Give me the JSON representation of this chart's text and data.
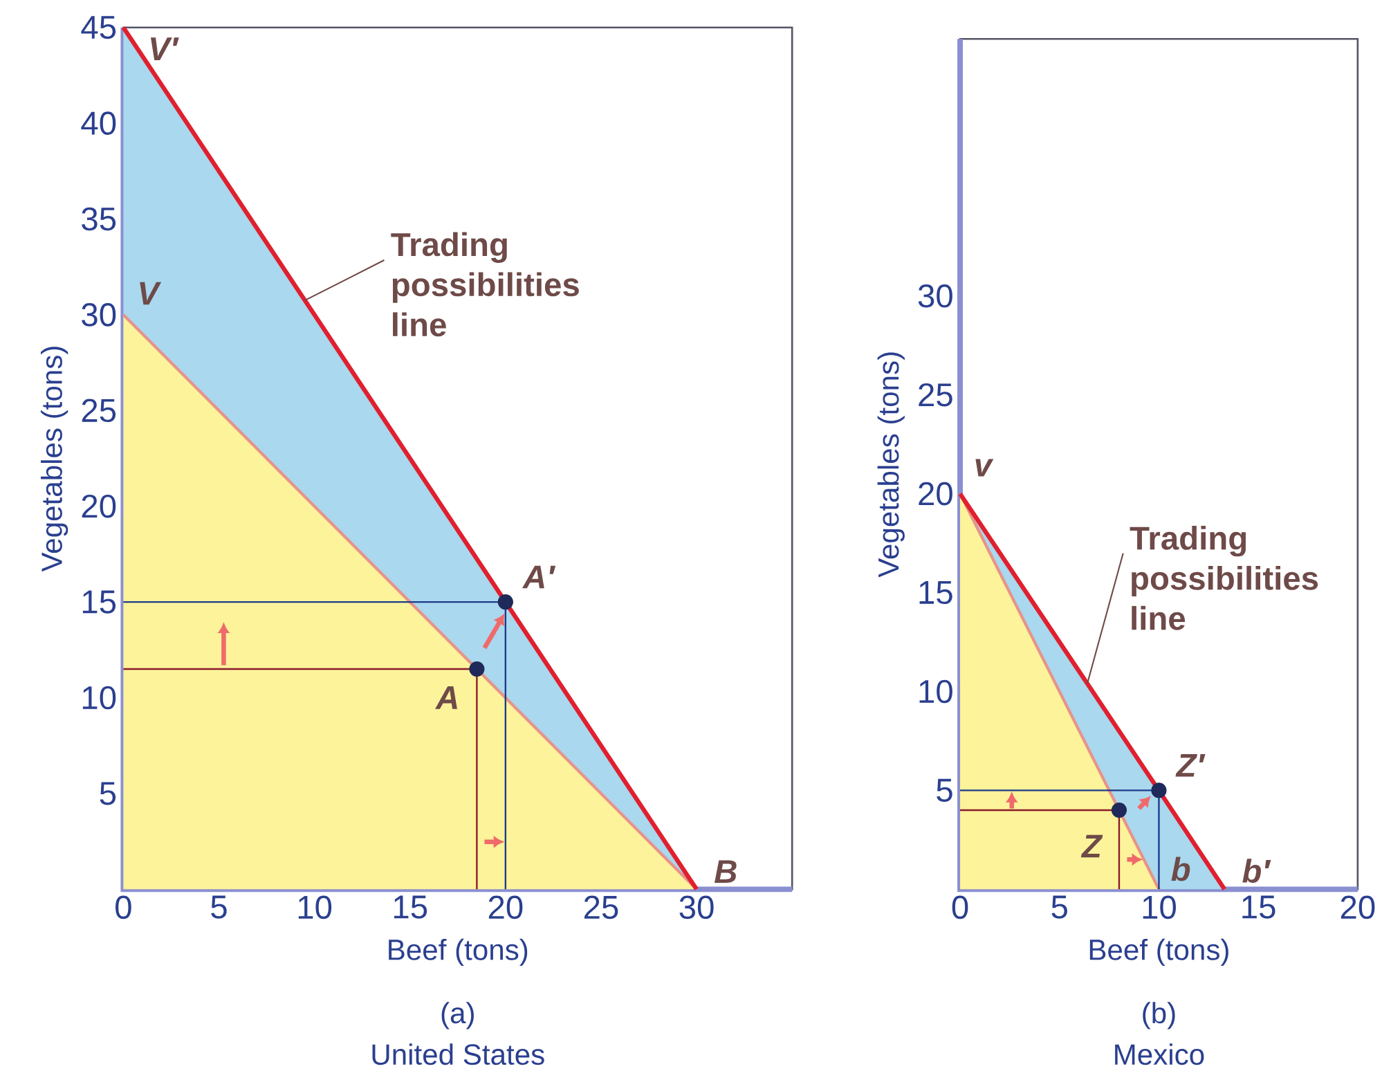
{
  "chart_data": [
    {
      "type": "line",
      "title": "(a)",
      "subtitle": "United States",
      "xlabel": "Beef (tons)",
      "ylabel": "Vegetables (tons)",
      "xlim": [
        0,
        35
      ],
      "ylim": [
        0,
        45
      ],
      "xticks": [
        0,
        5,
        10,
        15,
        20,
        25,
        30
      ],
      "yticks": [
        5,
        10,
        15,
        20,
        25,
        30,
        35,
        40,
        45
      ],
      "series": [
        {
          "type": "line",
          "color": "#e8938a",
          "x": [
            0,
            18.5,
            30
          ],
          "values": [
            30,
            11.5,
            0
          ],
          "lower": [
            0,
            0,
            0
          ],
          "upper": [
            30,
            11.5,
            0
          ]
        },
        {
          "type": "line",
          "color": "#e0202e",
          "x": [
            0,
            20,
            30
          ],
          "values": [
            45,
            15,
            0
          ],
          "lower": [
            30,
            10,
            0
          ],
          "upper": [
            45,
            15,
            0
          ]
        },
        {
          "type": "line",
          "color": "#8b1a2b",
          "x": [
            0,
            18.5,
            18.5
          ],
          "values": [
            11.5,
            11.5,
            0
          ]
        },
        {
          "type": "line",
          "color": "#1f3a8a",
          "x": [
            0,
            20,
            20
          ],
          "values": [
            15,
            15,
            0
          ]
        },
        {
          "type": "scatter",
          "color": "#1f2a5a",
          "x": [
            18.5,
            20
          ],
          "values": [
            11.5,
            15
          ]
        }
      ],
      "annotations": [
        {
          "text": "Trading possibilities line",
          "x": 9.5,
          "y": 30.75
        },
        {
          "text": "V′",
          "x": 0,
          "y": 45
        },
        {
          "text": "V",
          "x": 0,
          "y": 30
        },
        {
          "text": "A′",
          "x": 20,
          "y": 15
        },
        {
          "text": "A",
          "x": 18.5,
          "y": 11.5
        },
        {
          "text": "B",
          "x": 30,
          "y": 0
        }
      ]
    },
    {
      "type": "line",
      "title": "(b)",
      "subtitle": "Mexico",
      "xlabel": "Beef (tons)",
      "ylabel": "Vegetables (tons)",
      "xlim": [
        0,
        20
      ],
      "ylim": [
        0,
        43
      ],
      "xticks": [
        0,
        5,
        10,
        15,
        20
      ],
      "yticks": [
        5,
        10,
        15,
        20,
        25,
        30
      ],
      "series": [
        {
          "type": "line",
          "color": "#e8938a",
          "x": [
            0,
            10
          ],
          "values": [
            20,
            0
          ],
          "lower": [
            0,
            0
          ],
          "upper": [
            20,
            0
          ]
        },
        {
          "type": "line",
          "color": "#e0202e",
          "x": [
            0,
            10,
            13.3
          ],
          "values": [
            20,
            5,
            0
          ],
          "lower": [
            20,
            0,
            0
          ],
          "upper": [
            20,
            5,
            0
          ]
        },
        {
          "type": "line",
          "color": "#8b1a2b",
          "x": [
            0,
            8,
            8
          ],
          "values": [
            4,
            4,
            0
          ]
        },
        {
          "type": "line",
          "color": "#1f3a8a",
          "x": [
            0,
            10,
            10
          ],
          "values": [
            5,
            5,
            0
          ]
        },
        {
          "type": "scatter",
          "color": "#1f2a5a",
          "x": [
            8,
            10
          ],
          "values": [
            4,
            5
          ]
        }
      ],
      "annotations": [
        {
          "text": "Trading possibilities line",
          "x": 6.4,
          "y": 10.4
        },
        {
          "text": "v",
          "x": 0,
          "y": 20
        },
        {
          "text": "Z′",
          "x": 10,
          "y": 5
        },
        {
          "text": "Z",
          "x": 8,
          "y": 4
        },
        {
          "text": "b",
          "x": 10,
          "y": 0
        },
        {
          "text": "b′",
          "x": 13.3,
          "y": 0
        }
      ]
    }
  ]
}
